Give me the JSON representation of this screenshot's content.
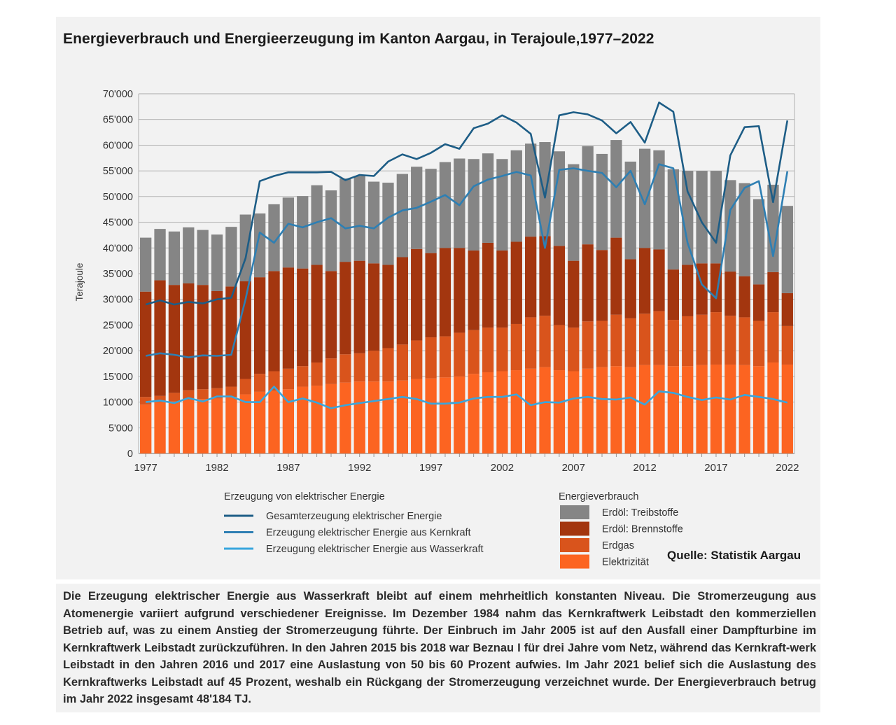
{
  "title": "Energieverbrauch und Energieerzeugung im Kanton Aargau, in Terajoule,1977–2022",
  "source": "Quelle: Statistik Aargau",
  "caption": "Die Erzeugung elektrischer Energie aus Wasserkraft bleibt auf einem mehrheitlich konstanten Niveau. Die Stromerzeugung aus Atomenergie variiert aufgrund verschiedener Ereignisse. Im Dezember 1984 nahm das Kernkraftwerk Leibstadt den kommerziellen Betrieb auf, was zu einem Anstieg der Stromerzeugung führte. Der Einbruch im Jahr 2005 ist auf den Ausfall einer Dampfturbine im Kernkraftwerk Leibstadt zurückzuführen. In den Jahren 2015 bis 2018 war Beznau I für drei Jahre vom Netz, während das Kernkraft-werk Leibstadt in den Jahren 2016 und 2017 eine Auslastung von 50 bis 60 Prozent aufwies. Im Jahr 2021 belief sich die Auslastung des Kernkraftwerks Leibstadt auf 45 Prozent, weshalb ein Rückgang der Stromerzeugung verzeichnet wurde. Der Energieverbrauch betrug im Jahr 2022 insgesamt 48'184 TJ.",
  "legend": {
    "lines_title": "Erzeugung von elektrischer Energie",
    "bars_title": "Energieverbrauch"
  },
  "colors": {
    "Treibstoffe": "#858585",
    "Brennstoffe": "#a3360f",
    "Erdgas": "#d9541c",
    "Elektrizitaet": "#fc6421",
    "Gesamt": "#1d5d86",
    "Kernkraft": "#2e7fb3",
    "Wasserkraft": "#38a6dd"
  },
  "chart_data": {
    "type": "bar",
    "stacked": true,
    "title": "Energieverbrauch und Energieerzeugung im Kanton Aargau, in Terajoule,1977–2022",
    "xlabel": "",
    "ylabel": "Terajoule",
    "ylim": [
      0,
      70000
    ],
    "yticks": [
      0,
      5000,
      10000,
      15000,
      20000,
      25000,
      30000,
      35000,
      40000,
      45000,
      50000,
      55000,
      60000,
      65000,
      70000
    ],
    "ytick_labels": [
      "0",
      "5'000",
      "10'000",
      "15'000",
      "20'000",
      "25'000",
      "30'000",
      "35'000",
      "40'000",
      "45'000",
      "50'000",
      "55'000",
      "60'000",
      "65'000",
      "70'000"
    ],
    "xtick_labels": [
      "1977",
      "1982",
      "1987",
      "1992",
      "1997",
      "2002",
      "2007",
      "2012",
      "2017",
      "2022"
    ],
    "grid": true,
    "categories": [
      1977,
      1978,
      1979,
      1980,
      1981,
      1982,
      1983,
      1984,
      1985,
      1986,
      1987,
      1988,
      1989,
      1990,
      1991,
      1992,
      1993,
      1994,
      1995,
      1996,
      1997,
      1998,
      1999,
      2000,
      2001,
      2002,
      2003,
      2004,
      2005,
      2006,
      2007,
      2008,
      2009,
      2010,
      2011,
      2012,
      2013,
      2014,
      2015,
      2016,
      2017,
      2018,
      2019,
      2020,
      2021,
      2022
    ],
    "series": [
      {
        "name": "Elektrizität",
        "kind": "bar",
        "color": "#fc6421",
        "values": [
          9500,
          10000,
          10100,
          10500,
          10600,
          10700,
          11000,
          11500,
          12000,
          12200,
          12500,
          13000,
          13200,
          13500,
          13800,
          14000,
          14000,
          14000,
          14200,
          14500,
          14600,
          14800,
          15000,
          15500,
          15800,
          16000,
          16200,
          16500,
          16800,
          16200,
          16000,
          16500,
          16800,
          17000,
          16800,
          17200,
          17200,
          17000,
          17000,
          17200,
          17300,
          17300,
          17200,
          17000,
          17700,
          17300
        ]
      },
      {
        "name": "Erdgas",
        "kind": "bar",
        "color": "#d9541c",
        "values": [
          1500,
          1200,
          1700,
          1800,
          1900,
          2000,
          2000,
          3000,
          3500,
          3800,
          4000,
          4000,
          4500,
          5000,
          5500,
          5500,
          6000,
          6500,
          7000,
          7500,
          8000,
          8000,
          8500,
          8500,
          8700,
          8500,
          9000,
          10000,
          10000,
          8800,
          8500,
          9200,
          9000,
          10000,
          9500,
          10000,
          10500,
          9000,
          9700,
          9800,
          10200,
          9500,
          9300,
          8800,
          9800,
          7500
        ]
      },
      {
        "name": "Erdöl: Brennstoffe",
        "kind": "bar",
        "color": "#a3360f",
        "values": [
          20500,
          22500,
          21000,
          20800,
          20300,
          18900,
          19500,
          19000,
          18800,
          19500,
          19700,
          19000,
          19000,
          17000,
          18000,
          18000,
          17000,
          16200,
          17000,
          17800,
          16400,
          17200,
          16500,
          15500,
          16500,
          15000,
          16000,
          15700,
          15500,
          15400,
          13000,
          15000,
          13800,
          15000,
          11500,
          12800,
          12000,
          9800,
          10000,
          10000,
          9500,
          8600,
          8000,
          7100,
          7800,
          6400
        ]
      },
      {
        "name": "Erdöl: Treibstoffe",
        "kind": "bar",
        "color": "#858585",
        "values": [
          10500,
          10000,
          10400,
          10900,
          10700,
          11000,
          11600,
          13000,
          12400,
          13000,
          13600,
          14100,
          15500,
          15700,
          16200,
          16500,
          15900,
          16000,
          16200,
          16000,
          16400,
          16700,
          17400,
          17800,
          17400,
          17800,
          17800,
          18100,
          18300,
          18400,
          18800,
          19100,
          18700,
          19000,
          19000,
          19300,
          19300,
          19500,
          18300,
          18000,
          18000,
          17800,
          18100,
          16600,
          17000,
          16984
        ]
      },
      {
        "name": "Gesamterzeugung elektrischer Energie",
        "kind": "line",
        "color": "#1d5d86",
        "values": [
          29000,
          29800,
          29000,
          29500,
          29200,
          30000,
          30300,
          38000,
          53000,
          54000,
          54700,
          54700,
          54700,
          54800,
          53200,
          54200,
          54000,
          56800,
          58200,
          57300,
          58500,
          60200,
          59300,
          63300,
          64200,
          65800,
          64400,
          62200,
          49800,
          65800,
          66400,
          66000,
          64800,
          62300,
          64500,
          60500,
          68300,
          66500,
          51000,
          45000,
          41000,
          58000,
          63500,
          63700,
          48900,
          64800
        ]
      },
      {
        "name": "Erzeugung elektrischer Energie aus Kernkraft",
        "kind": "line",
        "color": "#2e7fb3",
        "values": [
          19000,
          19500,
          19200,
          18700,
          19100,
          19000,
          19200,
          30000,
          43000,
          41000,
          44700,
          44000,
          45000,
          45800,
          43800,
          44300,
          43800,
          45900,
          47300,
          47800,
          49000,
          50300,
          48300,
          52000,
          53300,
          54000,
          54800,
          54100,
          40000,
          55200,
          55500,
          55000,
          54600,
          51800,
          55000,
          48500,
          56300,
          55500,
          41000,
          32900,
          30200,
          47400,
          51700,
          53000,
          38400,
          54900
        ]
      },
      {
        "name": "Erzeugung elektrischer Energie aus Wasserkraft",
        "kind": "line",
        "color": "#38a6dd",
        "values": [
          10000,
          10300,
          9800,
          10800,
          10100,
          11100,
          11100,
          10000,
          10000,
          13000,
          10000,
          10700,
          9900,
          8800,
          9400,
          9800,
          10200,
          10600,
          11000,
          10600,
          9700,
          9700,
          9900,
          10700,
          11000,
          11000,
          11500,
          9400,
          10000,
          9900,
          10700,
          11000,
          10600,
          10500,
          10900,
          9500,
          12100,
          11800,
          11000,
          10400,
          10900,
          10500,
          11400,
          11000,
          10600,
          9900
        ]
      }
    ],
    "legend": {
      "placement": "bottom",
      "lines": [
        "Gesamterzeugung elektrischer Energie",
        "Erzeugung elektrischer Energie aus Kernkraft",
        "Erzeugung elektrischer Energie aus Wasserkraft"
      ],
      "bars": [
        "Erdöl: Treibstoffe",
        "Erdöl: Brennstoffe",
        "Erdgas",
        "Elektrizität"
      ]
    }
  }
}
